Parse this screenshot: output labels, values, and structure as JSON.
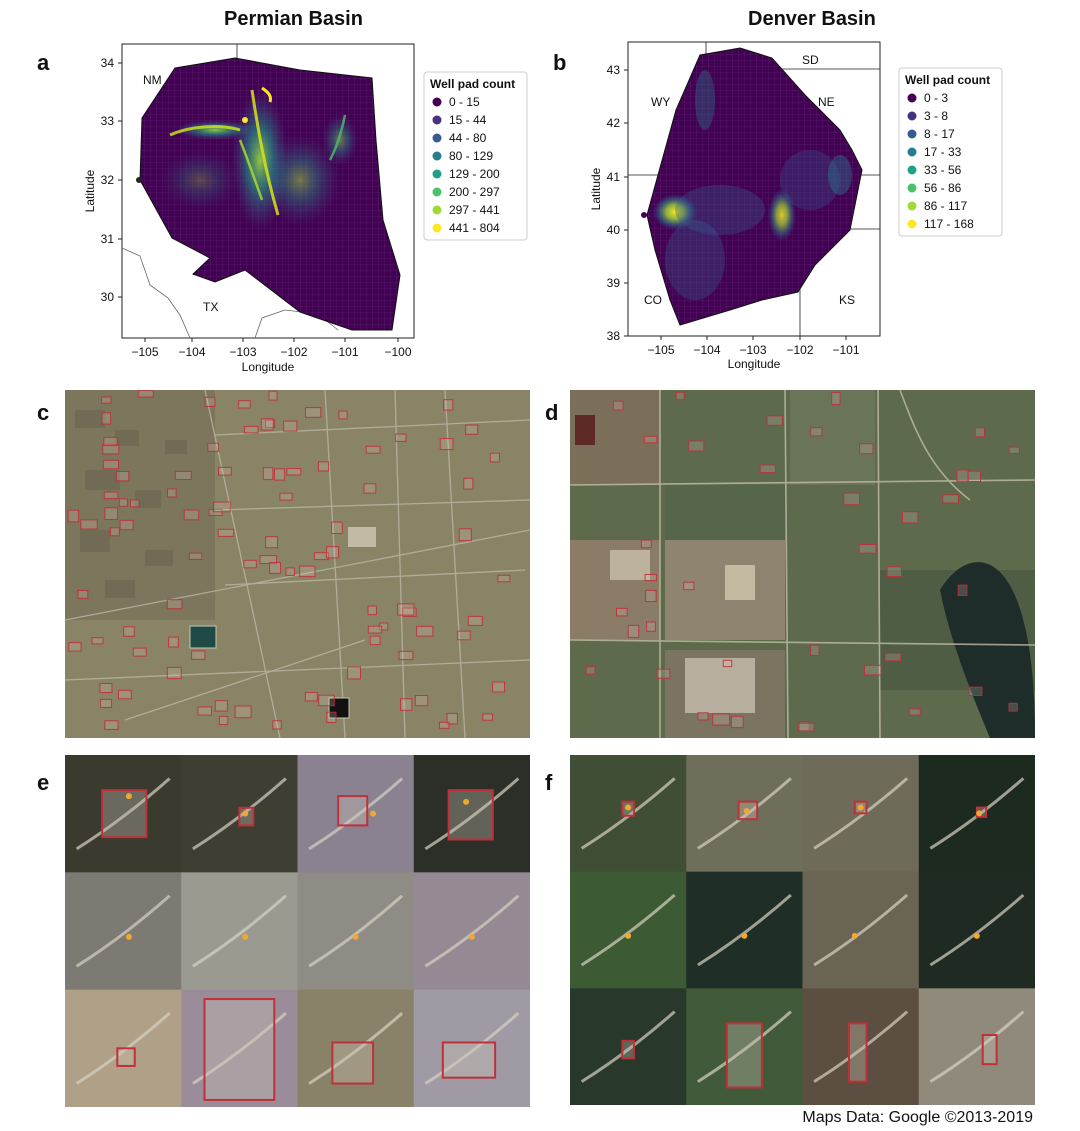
{
  "titles": {
    "left": "Permian Basin",
    "right": "Denver Basin"
  },
  "panel_letters": [
    "a",
    "b",
    "c",
    "d",
    "e",
    "f"
  ],
  "map_a": {
    "xlabel": "Longitude",
    "ylabel": "Latitude",
    "xticks": [
      "−105",
      "−104",
      "−103",
      "−102",
      "−101",
      "−100"
    ],
    "yticks": [
      "34",
      "33",
      "32",
      "31",
      "30"
    ],
    "state_labels": [
      "NM",
      "TX"
    ],
    "legend_title": "Well pad count",
    "legend_items": [
      {
        "label": "0 - 15",
        "color": "#440154"
      },
      {
        "label": "15 - 44",
        "color": "#46327e"
      },
      {
        "label": "44 - 80",
        "color": "#365c8d"
      },
      {
        "label": "80 - 129",
        "color": "#277f8e"
      },
      {
        "label": "129 - 200",
        "color": "#1fa187"
      },
      {
        "label": "200 - 297",
        "color": "#4ac16d"
      },
      {
        "label": "297 - 441",
        "color": "#a0da39"
      },
      {
        "label": "441 - 804",
        "color": "#fde725"
      }
    ]
  },
  "map_b": {
    "xlabel": "Longitude",
    "ylabel": "Latitude",
    "xticks": [
      "−105",
      "−104",
      "−103",
      "−102",
      "−101"
    ],
    "yticks": [
      "43",
      "42",
      "41",
      "40",
      "39",
      "38"
    ],
    "state_labels": [
      "SD",
      "WY",
      "NE",
      "CO",
      "KS"
    ],
    "legend_title": "Well pad count",
    "legend_items": [
      {
        "label": "0 - 3",
        "color": "#440154"
      },
      {
        "label": "3 - 8",
        "color": "#46327e"
      },
      {
        "label": "8 - 17",
        "color": "#365c8d"
      },
      {
        "label": "17 - 33",
        "color": "#277f8e"
      },
      {
        "label": "33 - 56",
        "color": "#1fa187"
      },
      {
        "label": "56 - 86",
        "color": "#4ac16d"
      },
      {
        "label": "86 - 117",
        "color": "#a0da39"
      },
      {
        "label": "117 - 168",
        "color": "#fde725"
      }
    ]
  },
  "credit": "Maps Data: Google ©2013-2019",
  "colors": {
    "viridis_dark": "#440154",
    "pad_box": "#c0303a",
    "permian_ground": "#8a8466",
    "denver_ground": "#5d6a4c"
  }
}
